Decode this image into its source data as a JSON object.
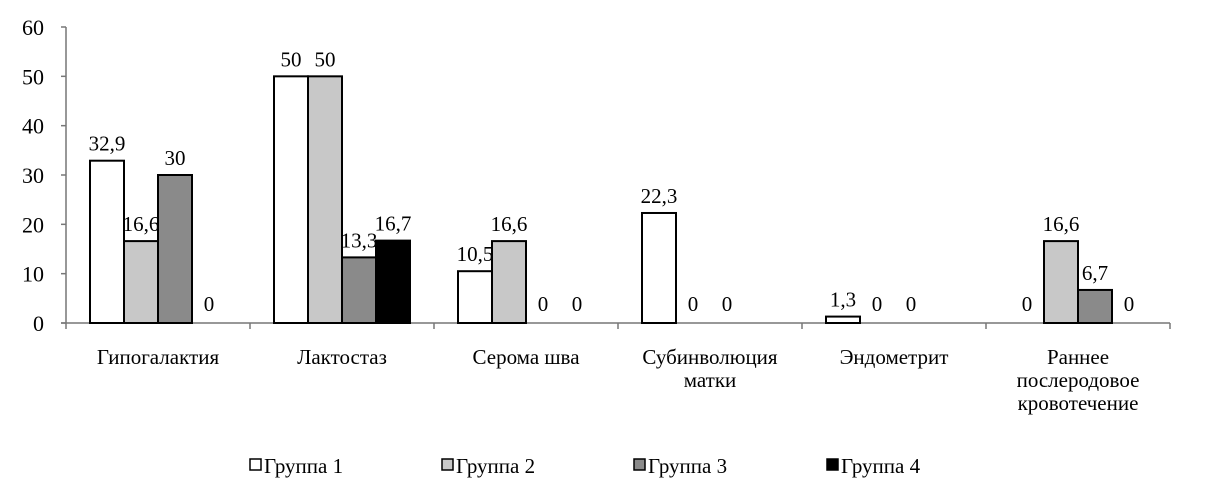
{
  "chart_data": {
    "type": "bar",
    "title": "",
    "xlabel": "",
    "ylabel": "",
    "ylim": [
      0,
      60
    ],
    "yticks": [
      0,
      10,
      20,
      30,
      40,
      50,
      60
    ],
    "grid": false,
    "legend_position": "bottom",
    "categories": [
      [
        "Гипогалактия"
      ],
      [
        "Лактостаз"
      ],
      [
        "Серома шва"
      ],
      [
        "Субинволюция",
        "матки"
      ],
      [
        "Эндометрит"
      ],
      [
        "Раннее",
        "послеродовое",
        "кровотечение"
      ]
    ],
    "series": [
      {
        "name": "Группа 1",
        "color": "#ffffff",
        "values": [
          32.9,
          50,
          10.5,
          22.3,
          1.3,
          null
        ],
        "labels": [
          "32,9",
          "50",
          "10,5",
          "22,3",
          "1,3",
          "0"
        ]
      },
      {
        "name": "Группа 2",
        "color": "#c8c8c8",
        "values": [
          16.6,
          50,
          16.6,
          0,
          0,
          16.6
        ],
        "labels": [
          "16,6",
          "50",
          "16,6",
          "0",
          "0",
          "16,6"
        ]
      },
      {
        "name": "Группа 3",
        "color": "#8a8a8a",
        "values": [
          30,
          13.3,
          0,
          0,
          0,
          6.7
        ],
        "labels": [
          "30",
          "13,3",
          "0",
          "0",
          "0",
          "6,7"
        ]
      },
      {
        "name": "Группа 4",
        "color": "#000000",
        "values": [
          0,
          16.7,
          0,
          null,
          null,
          0
        ],
        "labels": [
          "0",
          "16,7",
          "0",
          null,
          null,
          "0"
        ]
      }
    ]
  }
}
